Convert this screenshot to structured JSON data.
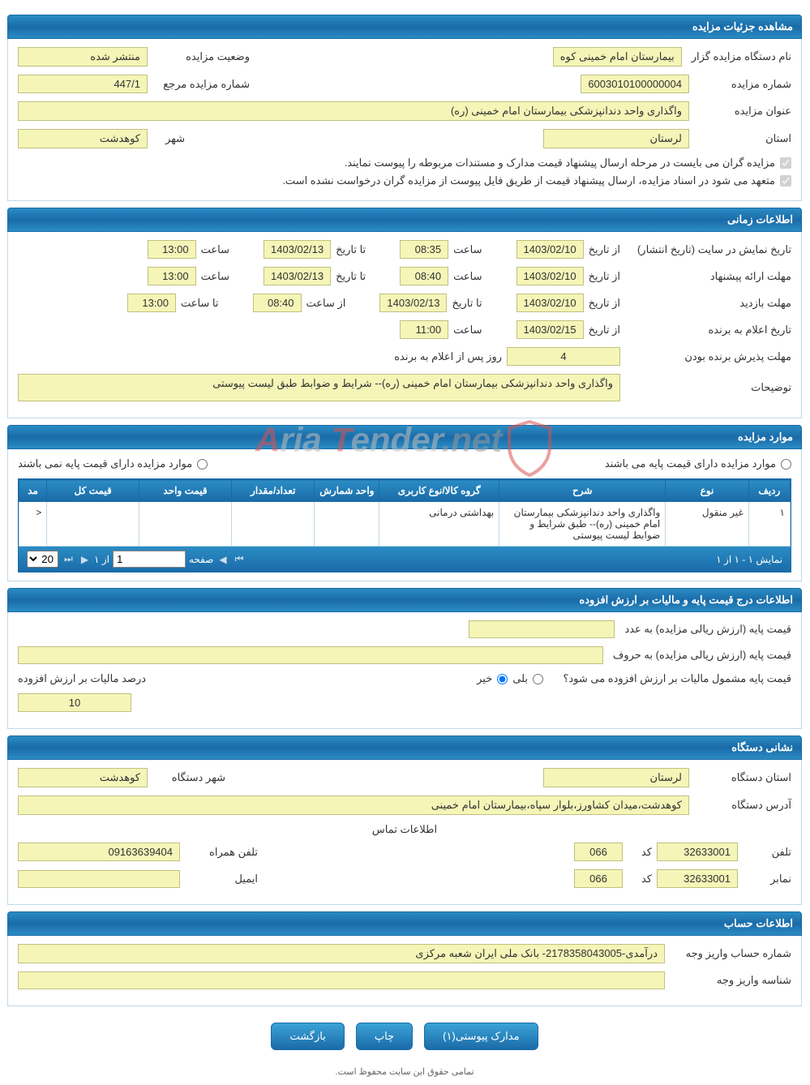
{
  "colors": {
    "header_bg_top": "#2b8cc4",
    "header_bg_bottom": "#1a6ba8",
    "header_text": "#ffffff",
    "field_bg": "#f5f5b8",
    "field_border": "#c0c080",
    "section_border": "#c0d8e8",
    "watermark_gray": "#bfbfbf",
    "watermark_red": "#d9534f"
  },
  "headers": {
    "details": "مشاهده جزئیات مزایده",
    "time": "اطلاعات زمانی",
    "items": "موارد مزایده",
    "price": "اطلاعات درج قیمت پایه و مالیات بر ارزش افزوده",
    "org": "نشانی دستگاه",
    "account": "اطلاعات حساب"
  },
  "details": {
    "org_label": "نام دستگاه مزایده گزار",
    "org_value": "بیمارستان امام خمینی کوه",
    "status_label": "وضعیت مزایده",
    "status_value": "منتشر شده",
    "num_label": "شماره مزایده",
    "num_value": "6003010100000004",
    "ref_label": "شماره مزایده مرجع",
    "ref_value": "447/1",
    "title_label": "عنوان مزایده",
    "title_value": "واگذاری واحد دندانپزشکی بیمارستان امام خمینی (ره)",
    "province_label": "استان",
    "province_value": "لرستان",
    "city_label": "شهر",
    "city_value": "کوهدشت",
    "check1": "مزایده گران می بایست در مرحله ارسال پیشنهاد قیمت مدارک و مستندات مربوطه را پیوست نمایند.",
    "check2": "متعهد می شود در اسناد مزایده، ارسال پیشنهاد قیمت از طریق فایل پیوست از مزایده گران درخواست نشده است."
  },
  "time": {
    "publish_label": "تاریخ نمایش در سایت (تاریخ انتشار)",
    "from_date_label": "از تاریخ",
    "to_date_label": "تا تاریخ",
    "from_time_label": "از ساعت",
    "to_time_label": "تا ساعت",
    "time_label": "ساعت",
    "publish_from_date": "1403/02/10",
    "publish_from_time": "08:35",
    "publish_to_date": "1403/02/13",
    "publish_to_time": "13:00",
    "bid_label": "مهلت ارائه پیشنهاد",
    "bid_from_date": "1403/02/10",
    "bid_from_time": "08:40",
    "bid_to_date": "1403/02/13",
    "bid_to_time": "13:00",
    "visit_label": "مهلت بازدید",
    "visit_from_date": "1403/02/10",
    "visit_to_date": "1403/02/13",
    "visit_from_time": "08:40",
    "visit_to_time": "13:00",
    "winner_label": "تاریخ اعلام به برنده",
    "winner_date": "1403/02/15",
    "winner_time": "11:00",
    "accept_label": "مهلت پذیرش برنده بودن",
    "accept_days": "4",
    "accept_days_label": "روز پس از اعلام به برنده",
    "desc_label": "توضیحات",
    "desc_value": "واگذاری واحد دندانپزشکی بیمارستان امام خمینی (ره)--  شرایط و ضوابط طبق لیست پیوستی"
  },
  "items": {
    "radio_hasbase": "موارد مزایده دارای قیمت پایه می باشند",
    "radio_nobase": "موارد مزایده دارای قیمت پایه نمی باشند",
    "columns": [
      "ردیف",
      "نوع",
      "شرح",
      "گروه کالا/نوع کاربری",
      "واحد شمارش",
      "تعداد/مقدار",
      "قیمت واحد",
      "قیمت کل",
      "مد"
    ],
    "rows": [
      {
        "idx": "۱",
        "type": "غیر منقول",
        "desc": "واگذاری واحد دندانپزشکی بیمارستان امام خمینی (ره)-- طبق شرایط و ضوابط لیست پیوستی",
        "group": "بهداشتی درمانی",
        "unit": "",
        "qty": "",
        "uprice": "",
        "total": "",
        "mod": "<"
      }
    ],
    "pager": {
      "status": "نمایش ۱ - ۱ از ۱",
      "page_label": "صفحه",
      "page_value": "1",
      "of_label": "از ۱",
      "per_page": "20"
    }
  },
  "price": {
    "base_num_label": "قیمت پایه (ارزش ریالی مزایده) به عدد",
    "base_num_value": "",
    "base_word_label": "قیمت پایه (ارزش ریالی مزایده) به حروف",
    "base_word_value": "",
    "vat_question": "قیمت پایه مشمول مالیات بر ارزش افزوده می شود؟",
    "yes": "بلی",
    "no": "خیر",
    "vat_pct_label": "درصد مالیات بر ارزش افزوده",
    "vat_pct_value": "10"
  },
  "org": {
    "province_label": "استان دستگاه",
    "province_value": "لرستان",
    "city_label": "شهر دستگاه",
    "city_value": "کوهدشت",
    "addr_label": "آدرس دستگاه",
    "addr_value": "کوهدشت،میدان کشاورز،بلوار سپاه،بیمارستان امام خمینی",
    "contact_header": "اطلاعات تماس",
    "phone_label": "تلفن",
    "phone_value": "32633001",
    "code_label": "کد",
    "code_value": "066",
    "mobile_label": "تلفن همراه",
    "mobile_value": "09163639404",
    "fax_label": "نمابر",
    "fax_value": "32633001",
    "fax_code": "066",
    "email_label": "ایمیل",
    "email_value": ""
  },
  "account": {
    "acc_label": "شماره حساب واریز وجه",
    "acc_value": "درآمدی-2178358043005- بانک ملی ایران شعبه مرکزی",
    "id_label": "شناسه واریز وجه",
    "id_value": ""
  },
  "buttons": {
    "attach": "مدارک پیوستی(۱)",
    "print": "چاپ",
    "back": "بازگشت"
  },
  "footer": "تمامی حقوق این سایت محفوظ است.",
  "watermark": {
    "text": "Aria Tender.net"
  }
}
